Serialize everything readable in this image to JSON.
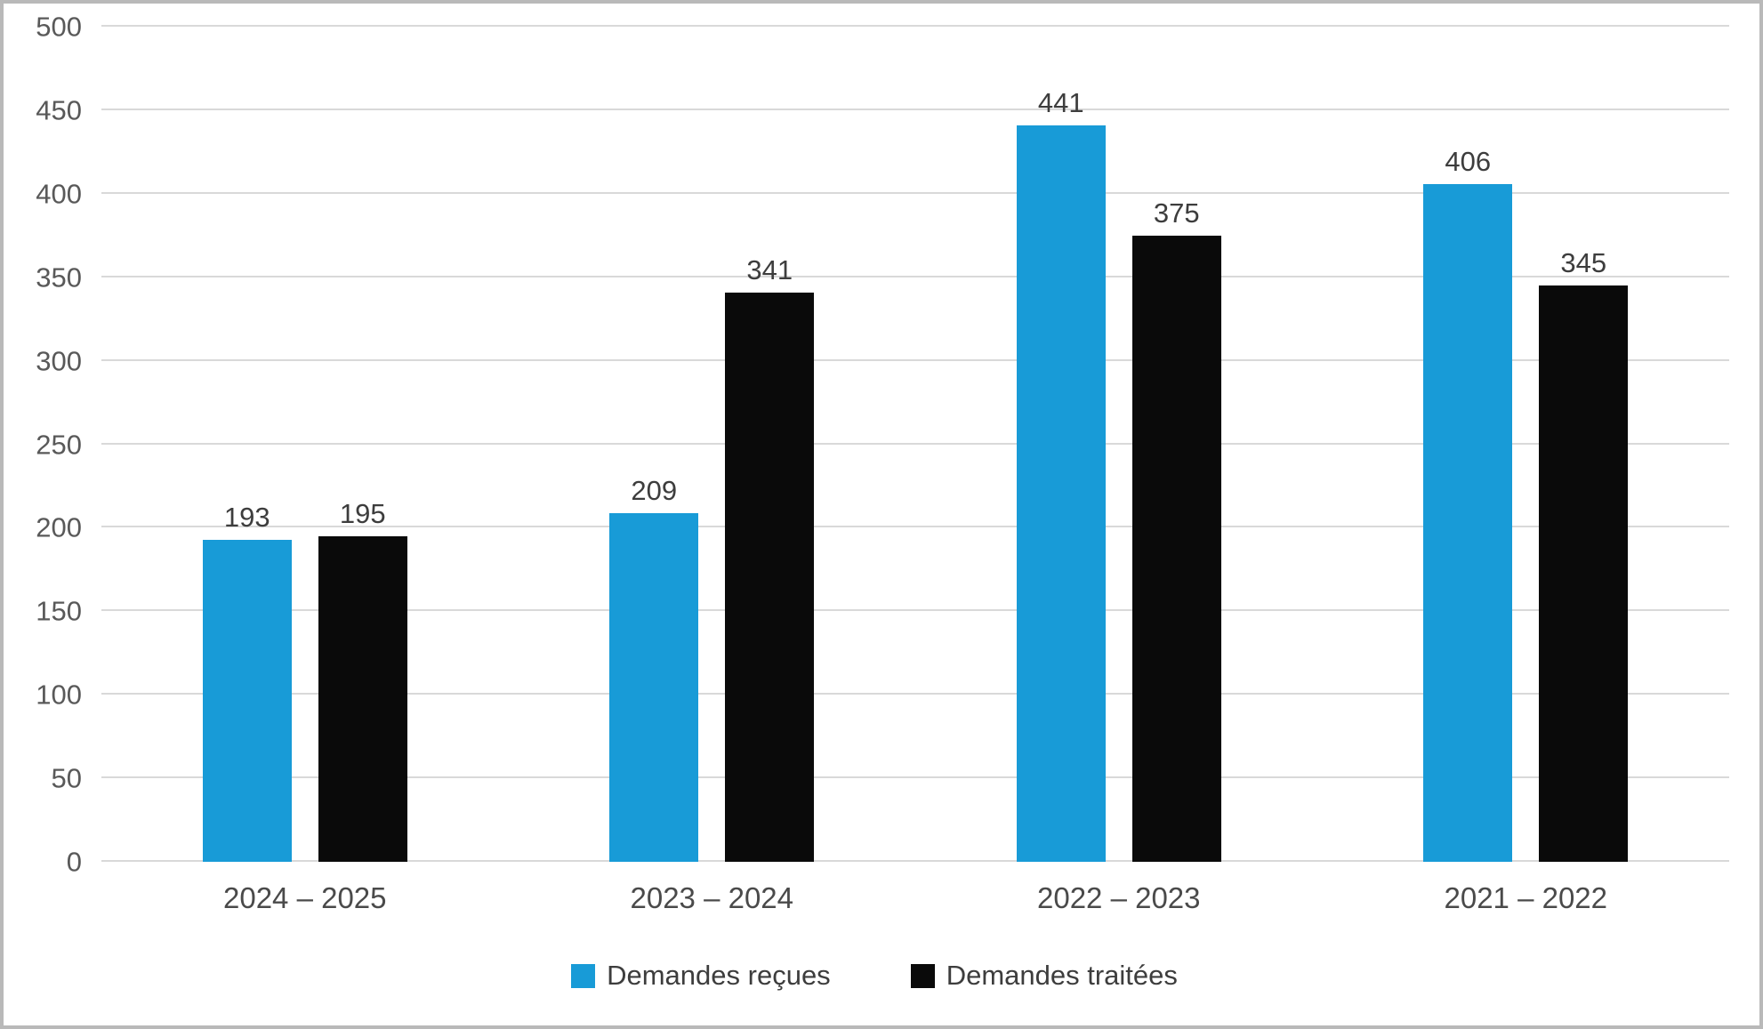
{
  "chart_data": {
    "type": "bar",
    "categories": [
      "2024 – 2025",
      "2023 – 2024",
      "2022 – 2023",
      "2021 – 2022"
    ],
    "series": [
      {
        "name": "Demandes reçues",
        "color": "#189bd7",
        "values": [
          193,
          209,
          441,
          406
        ]
      },
      {
        "name": "Demandes traitées",
        "color": "#0a0a0a",
        "values": [
          195,
          341,
          375,
          345
        ]
      }
    ],
    "ylim": [
      0,
      500
    ],
    "y_ticks": [
      0,
      50,
      100,
      150,
      200,
      250,
      300,
      350,
      400,
      450,
      500
    ],
    "grid": "horizontal",
    "legend_position": "bottom",
    "data_labels": true
  },
  "colors": {
    "gridline": "#d9d9d9",
    "axis_text": "#595959",
    "label_text": "#3d3d3d",
    "frame_border": "#b9b9b9"
  }
}
